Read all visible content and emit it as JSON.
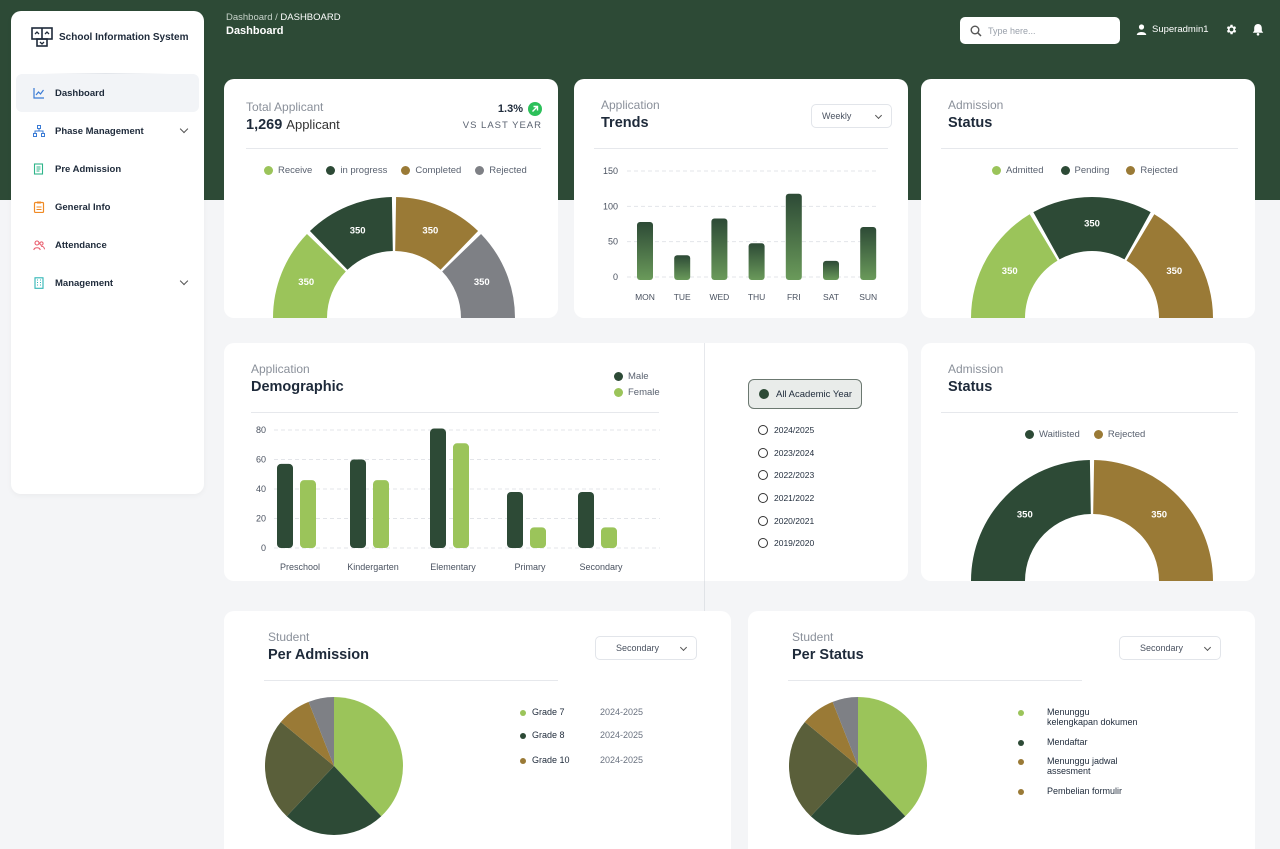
{
  "app": {
    "name": "School Information System"
  },
  "header": {
    "breadcrumb_parent": "Dashboard /",
    "breadcrumb_current": "DASHBOARD",
    "page_title": "Dashboard",
    "search_placeholder": "Type here...",
    "user": "Superadmin1"
  },
  "sidebar": {
    "items": [
      {
        "label": "Dashboard",
        "active": true
      },
      {
        "label": "Phase Management",
        "has_submenu": true
      },
      {
        "label": "Pre Admission"
      },
      {
        "label": "General Info"
      },
      {
        "label": "Attendance"
      },
      {
        "label": "Management",
        "has_submenu": true
      }
    ]
  },
  "total_applicant": {
    "title": "Total Applicant",
    "value": "1,269",
    "unit": "Applicant",
    "change": "1.3%",
    "change_label": "VS LAST YEAR"
  },
  "trends": {
    "title_top": "Application",
    "title": "Trends",
    "dropdown": "Weekly"
  },
  "admission_status_1": {
    "title_top": "Admission",
    "title": "Status"
  },
  "demographic": {
    "title_top": "Application",
    "title": "Demographic"
  },
  "academic_years": {
    "selected": "All Academic Year",
    "options": [
      "2024/2025",
      "2023/2024",
      "2022/2023",
      "2021/2022",
      "2020/2021",
      "2019/2020"
    ]
  },
  "admission_status_2": {
    "title_top": "Admission",
    "title": "Status"
  },
  "per_admission": {
    "title_top": "Student",
    "title": "Per Admission",
    "dropdown": "Secondary",
    "legend": [
      {
        "label": "Grade 7",
        "year": "2024-2025",
        "color": "#9bc45a"
      },
      {
        "label": "Grade 8",
        "year": "2024-2025",
        "color": "#2d4a36"
      },
      {
        "label": "Grade 10",
        "year": "2024-2025",
        "color": "#9a7a36"
      }
    ]
  },
  "per_status": {
    "title_top": "Student",
    "title": "Per Status",
    "dropdown": "Secondary",
    "legend": [
      {
        "label": "Menunggu kelengkapan dokumen",
        "color": "#9bc45a"
      },
      {
        "label": "Mendaftar",
        "color": "#2d4a36"
      },
      {
        "label": "Menunggu jadwal assesment",
        "color": "#9a7a36"
      },
      {
        "label": "Pembelian formulir",
        "color": "#9a7a36"
      }
    ]
  },
  "colors": {
    "dark_green": "#2d4a36",
    "light_green": "#9bc45a",
    "brown": "#9a7a36",
    "gray": "#7e8085",
    "olive": "#5a5f3a"
  },
  "chart_data": [
    {
      "type": "pie",
      "subtype": "half-donut",
      "series": [
        {
          "name": "Receive",
          "value": 350,
          "color": "#9bc45a"
        },
        {
          "name": "in progress",
          "value": 350,
          "color": "#2d4a36"
        },
        {
          "name": "Completed",
          "value": 350,
          "color": "#9a7a36"
        },
        {
          "name": "Rejected",
          "value": 350,
          "color": "#7e8085"
        }
      ]
    },
    {
      "type": "bar",
      "categories": [
        "MON",
        "TUE",
        "WED",
        "THU",
        "FRI",
        "SAT",
        "SUN"
      ],
      "values": [
        82,
        35,
        87,
        52,
        122,
        27,
        75
      ],
      "yticks": [
        0,
        50,
        100,
        150
      ],
      "ylim": [
        0,
        150
      ],
      "grid": true
    },
    {
      "type": "pie",
      "subtype": "half-donut",
      "series": [
        {
          "name": "Admitted",
          "value": 350,
          "color": "#9bc45a"
        },
        {
          "name": "Pending",
          "value": 350,
          "color": "#2d4a36"
        },
        {
          "name": "Rejected",
          "value": 350,
          "color": "#9a7a36"
        }
      ]
    },
    {
      "type": "bar",
      "categories": [
        "Preschool",
        "Kindergarten",
        "Elementary",
        "Primary",
        "Secondary"
      ],
      "series": [
        {
          "name": "Male",
          "values": [
            57,
            60,
            81,
            38,
            38
          ],
          "color": "#2d4a36"
        },
        {
          "name": "Female",
          "values": [
            46,
            46,
            71,
            14,
            14
          ],
          "color": "#9bc45a"
        }
      ],
      "yticks": [
        0,
        20,
        40,
        60,
        80
      ],
      "ylim": [
        0,
        80
      ],
      "grid": true
    },
    {
      "type": "pie",
      "subtype": "half-donut",
      "series": [
        {
          "name": "Waitlisted",
          "value": 350,
          "color": "#2d4a36"
        },
        {
          "name": "Rejected",
          "value": 350,
          "color": "#9a7a36"
        }
      ]
    },
    {
      "type": "pie",
      "values": [
        38,
        24,
        24,
        8,
        6
      ],
      "colors": [
        "#9bc45a",
        "#2d4a36",
        "#5a5f3a",
        "#9a7a36",
        "#7e8085"
      ]
    },
    {
      "type": "pie",
      "values": [
        38,
        24,
        24,
        8,
        6
      ],
      "colors": [
        "#9bc45a",
        "#2d4a36",
        "#5a5f3a",
        "#9a7a36",
        "#7e8085"
      ]
    }
  ]
}
